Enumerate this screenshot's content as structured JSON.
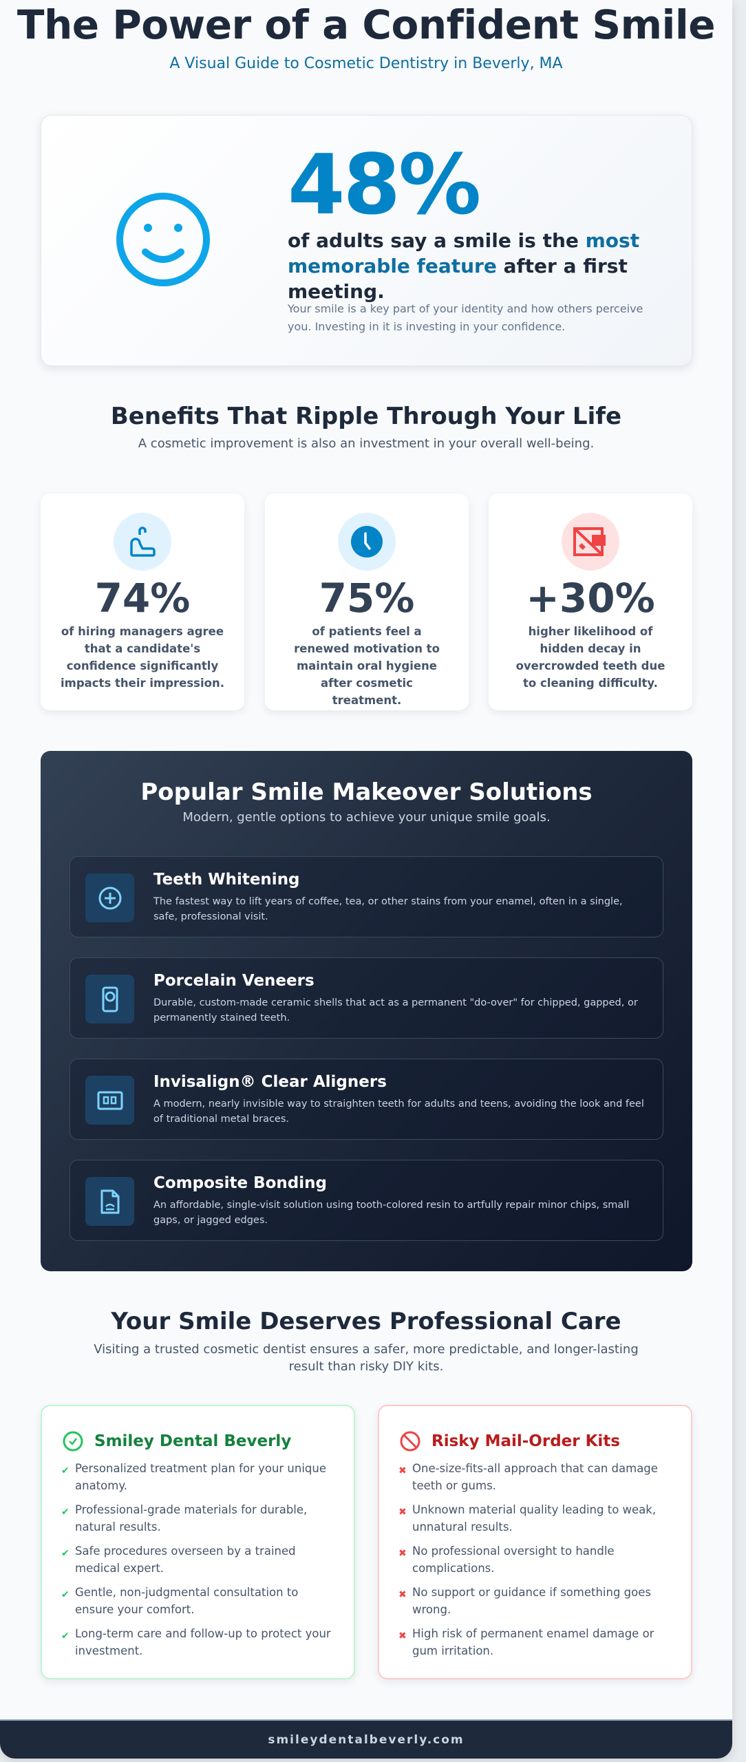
{
  "header": {
    "title": "The Power of a Confident Smile",
    "subtitle": "A Visual Guide to Cosmetic Dentistry in Beverly, MA"
  },
  "hero": {
    "icon": "smile-icon",
    "stat": "48%",
    "lead_pre": "of adults say a smile is the ",
    "lead_highlight": "most memorable feature",
    "lead_post": " after a first meeting.",
    "note": "Your smile is a key part of your identity and how others perceive you. Investing in it is investing in your confidence.",
    "accent": "#0284c7"
  },
  "benefits": {
    "title": "Benefits That Ripple Through Your Life",
    "subtitle": "A cosmetic improvement is also an investment in your overall well-being.",
    "cards": [
      {
        "icon": "handshake-icon",
        "stat": "74%",
        "text": "of hiring managers agree that a candidate's confidence significantly impacts their impression."
      },
      {
        "icon": "clock-icon",
        "stat": "75%",
        "text": "of patients feel a renewed motivation to maintain oral hygiene after cosmetic treatment."
      },
      {
        "icon": "warning-image-icon",
        "stat": "+30%",
        "text": "higher likelihood of hidden decay in overcrowded teeth due to cleaning difficulty."
      }
    ]
  },
  "solutions": {
    "title": "Popular Smile Makeover Solutions",
    "subtitle": "Modern, gentle options to achieve your unique smile goals.",
    "items": [
      {
        "icon": "plus-circle-icon",
        "title": "Teeth Whitening",
        "text": "The fastest way to lift years of coffee, tea, or other stains from your enamel, often in a single, safe, professional visit."
      },
      {
        "icon": "veneer-icon",
        "title": "Porcelain Veneers",
        "text": "Durable, custom-made ceramic shells that act as a permanent \"do-over\" for chipped, gapped, or permanently stained teeth."
      },
      {
        "icon": "aligner-icon",
        "title": "Invisalign® Clear Aligners",
        "text": "A modern, nearly invisible way to straighten teeth for adults and teens, avoiding the look and feel of traditional metal braces."
      },
      {
        "icon": "document-icon",
        "title": "Composite Bonding",
        "text": "An affordable, single-visit solution using tooth-colored resin to artfully repair minor chips, small gaps, or jagged edges."
      }
    ]
  },
  "care": {
    "title": "Your Smile Deserves Professional Care",
    "subtitle": "Visiting a trusted cosmetic dentist ensures a safer, more predictable, and longer-lasting result than risky DIY kits.",
    "good": {
      "title": "Smiley Dental Beverly",
      "color": "#15803d",
      "items": [
        "Personalized treatment plan for your unique anatomy.",
        "Professional-grade materials for durable, natural results.",
        "Safe procedures overseen by a trained medical expert.",
        "Gentle, non-judgmental consultation to ensure your comfort.",
        "Long-term care and follow-up to protect your investment."
      ]
    },
    "bad": {
      "title": "Risky Mail-Order Kits",
      "color": "#b91c1c",
      "items": [
        "One-size-fits-all approach that can damage teeth or gums.",
        "Unknown material quality leading to weak, unnatural results.",
        "No professional oversight to handle complications.",
        "No support or guidance if something goes wrong.",
        "High risk of permanent enamel damage or gum irritation."
      ]
    }
  },
  "footer": {
    "site": "smileydentalbeverly.com"
  }
}
